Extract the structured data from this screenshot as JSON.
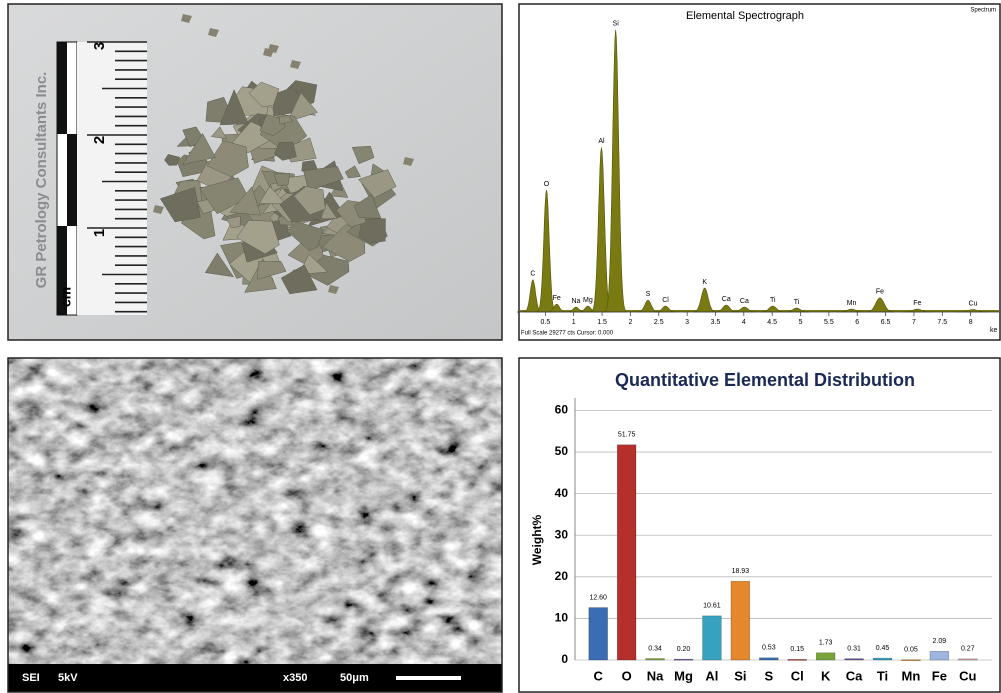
{
  "photo": {
    "brand": "GR Petrology Consultants Inc.",
    "scale_labels": [
      "3",
      "2",
      "1"
    ],
    "scale_unit": "cm"
  },
  "chart_data": [
    {
      "type": "spectrum",
      "title": "Elemental Spectrograph",
      "corner_label": "Spectrum",
      "footer": "Full Scale 29277 cts Cursor: 0.000",
      "xlabel": "ke",
      "labels": [
        "C",
        "O",
        "Fe",
        "Na",
        "Mg",
        "Al",
        "Si",
        "S",
        "Cl",
        "K",
        "Ca",
        "Ca",
        "Ti",
        "Ti",
        "Mn",
        "Fe",
        "Fe",
        "Cu"
      ],
      "x": [
        0.28,
        0.52,
        0.7,
        1.04,
        1.25,
        1.49,
        1.74,
        2.31,
        2.62,
        3.31,
        3.69,
        4.01,
        4.51,
        4.93,
        5.9,
        6.4,
        7.06,
        8.04
      ],
      "values": [
        3300,
        12450,
        800,
        500,
        600,
        16800,
        28800,
        1200,
        600,
        2450,
        700,
        500,
        600,
        400,
        300,
        1450,
        300,
        250
      ],
      "color": "#7a7a12",
      "xlim": [
        0,
        8.5
      ],
      "xticks": [
        0.5,
        1,
        1.5,
        2,
        2.5,
        3,
        3.5,
        4,
        4.5,
        5,
        5.5,
        6,
        6.5,
        7,
        7.5,
        8
      ],
      "ylim": [
        0,
        30000
      ]
    },
    {
      "type": "bar",
      "title": "Quantitative Elemental Distribution",
      "ylabel": "Weight%",
      "categories": [
        "C",
        "O",
        "Na",
        "Mg",
        "Al",
        "Si",
        "S",
        "Cl",
        "K",
        "Ca",
        "Ti",
        "Mn",
        "Fe",
        "Cu"
      ],
      "values": [
        12.6,
        51.75,
        0.34,
        0.2,
        10.61,
        18.93,
        0.53,
        0.15,
        1.73,
        0.31,
        0.45,
        0.05,
        2.09,
        0.27
      ],
      "value_labels": [
        "12.60",
        "51.75",
        "0.34",
        "0.20",
        "10.61",
        "18.93",
        "0.53",
        "0.15",
        "1.73",
        "0.31",
        "0.45",
        "0.05",
        "2.09",
        "0.27"
      ],
      "colors": [
        "#3b6db4",
        "#b5302d",
        "#7aa33a",
        "#6a4a9a",
        "#36a2c0",
        "#e5872c",
        "#3b6db4",
        "#b5302d",
        "#7aa33a",
        "#6a4a9a",
        "#36a2c0",
        "#e5872c",
        "#9db6e0",
        "#e3a3a3"
      ],
      "ylim": [
        0,
        63
      ],
      "yticks": [
        0,
        10,
        20,
        30,
        40,
        50,
        60
      ],
      "grid": true
    }
  ],
  "sem": {
    "detector": "SEI",
    "voltage": "5kV",
    "magnification": "x350",
    "scale": "50μm"
  }
}
